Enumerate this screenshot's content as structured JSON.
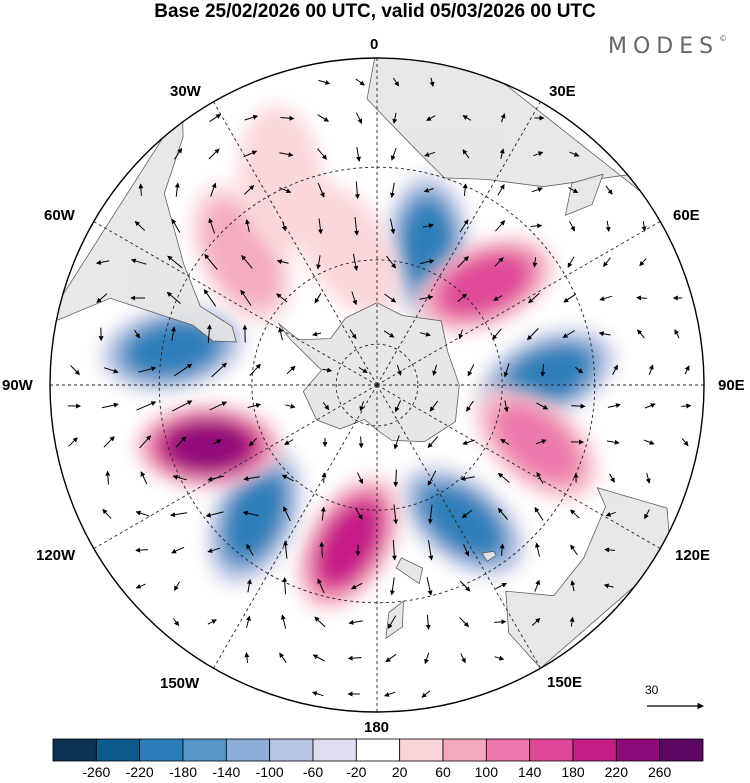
{
  "title": "Base 25/02/2026 00 UTC, valid 05/03/2026 00 UTC",
  "brand": "MODES",
  "brand_mark": "©",
  "map": {
    "projection": "South Polar Stereographic",
    "longitude_labels": [
      "0",
      "30E",
      "60E",
      "90E",
      "120E",
      "150E",
      "180",
      "150W",
      "120W",
      "90W",
      "60W",
      "30W"
    ],
    "reference_vector": {
      "value": "30"
    },
    "colors": {
      "land": "#e6e6e6",
      "ocean": "#ffffff",
      "coast": "#555555",
      "grid": "#222222"
    },
    "anomalies": [
      {
        "level": -220,
        "lon": 20,
        "colat": 35
      },
      {
        "level": 180,
        "lon": 47,
        "colat": 35
      },
      {
        "level": -200,
        "lon": 87,
        "colat": 40
      },
      {
        "level": 140,
        "lon": 110,
        "colat": 40
      },
      {
        "level": -200,
        "lon": 148,
        "colat": 38
      },
      {
        "level": 200,
        "lon": -170,
        "colat": 38
      },
      {
        "level": -200,
        "lon": -137,
        "colat": 42
      },
      {
        "level": 250,
        "lon": -110,
        "colat": 42
      },
      {
        "level": -220,
        "lon": -80,
        "colat": 48
      },
      {
        "level": 80,
        "lon": -46,
        "colat": 44
      },
      {
        "level": 70,
        "lon": -12,
        "colat": 33
      },
      {
        "level": 50,
        "lon": -25,
        "colat": 52
      }
    ]
  },
  "colorbar": {
    "labels": [
      "-260",
      "-220",
      "-180",
      "-140",
      "-100",
      "-60",
      "-20",
      "20",
      "60",
      "100",
      "140",
      "180",
      "220",
      "260"
    ],
    "colors": [
      "#0b3354",
      "#0e5a8c",
      "#2b7cb8",
      "#5596c8",
      "#8aaed8",
      "#b8c4e3",
      "#dedcef",
      "#ffffff",
      "#fad5d8",
      "#f4a9bf",
      "#ec77ac",
      "#de4796",
      "#c41d86",
      "#8e0a78",
      "#5b0663"
    ]
  }
}
